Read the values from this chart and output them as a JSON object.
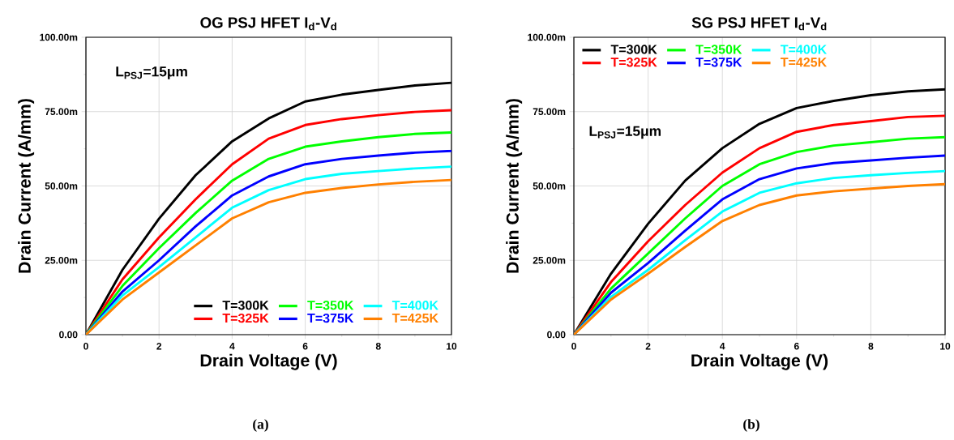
{
  "chart_data": [
    {
      "type": "line",
      "title": "OG PSJ HFET I$_{d}$-V$_{d}$",
      "xlabel": "Drain Voltage (V)",
      "ylabel": "Drain Current (A/mm)",
      "x": [
        0,
        1,
        2,
        3,
        4,
        5,
        6,
        7,
        8,
        9,
        10
      ],
      "xlim": [
        0,
        10
      ],
      "xticks": [
        0,
        2,
        4,
        6,
        8,
        10
      ],
      "ylim": [
        0,
        100
      ],
      "yticks": [
        {
          "value": 0,
          "label": "0.00"
        },
        {
          "value": 25,
          "label": "25.00m"
        },
        {
          "value": 50,
          "label": "50.00m"
        },
        {
          "value": 75,
          "label": "75.00m"
        },
        {
          "value": 100,
          "label": "100.00m"
        }
      ],
      "grid": true,
      "legend": "bottom right",
      "line_style": "solid",
      "annotations": [
        "L$_{PSJ}$=15μm",
        "(a)"
      ],
      "series": [
        {
          "name": "T=300K",
          "color": "#000000",
          "values": [
            0,
            21.8,
            39,
            53.6,
            65,
            72.7,
            78.4,
            80.7,
            82.3,
            83.8,
            84.7
          ]
        },
        {
          "name": "T=325K",
          "color": "#ff0000",
          "values": [
            0,
            18.6,
            32.7,
            45.5,
            57.3,
            65.9,
            70.5,
            72.5,
            73.8,
            74.9,
            75.5
          ]
        },
        {
          "name": "T=350K",
          "color": "#00ff00",
          "values": [
            0,
            16.4,
            29.1,
            40.9,
            51.8,
            59.1,
            63.2,
            65,
            66.4,
            67.5,
            68
          ]
        },
        {
          "name": "T=375K",
          "color": "#0000ff",
          "values": [
            0,
            14.5,
            25,
            36.4,
            46.8,
            53.2,
            57.3,
            59.1,
            60.2,
            61.2,
            61.8
          ]
        },
        {
          "name": "T=400K",
          "color": "#00ffff",
          "values": [
            0,
            13.2,
            22.7,
            32.7,
            42.7,
            48.6,
            52.3,
            54.1,
            55,
            55.9,
            56.5
          ]
        },
        {
          "name": "T=425K",
          "color": "#ff8000",
          "values": [
            0,
            11.8,
            20.9,
            30,
            39.1,
            44.5,
            47.7,
            49.3,
            50.5,
            51.4,
            52
          ]
        }
      ]
    },
    {
      "type": "line",
      "title": "SG PSJ HFET I$_{d}$-V$_{d}$",
      "xlabel": "Drain Voltage (V)",
      "ylabel": "Drain Current (A/mm)",
      "x": [
        0,
        1,
        2,
        3,
        4,
        5,
        6,
        7,
        8,
        9,
        10
      ],
      "xlim": [
        0,
        10
      ],
      "xticks": [
        0,
        2,
        4,
        6,
        8,
        10
      ],
      "ylim": [
        0,
        100
      ],
      "yticks": [
        {
          "value": 0,
          "label": "0.00"
        },
        {
          "value": 25,
          "label": "25.00m"
        },
        {
          "value": 50,
          "label": "50.00m"
        },
        {
          "value": 75,
          "label": "75.00m"
        },
        {
          "value": 100,
          "label": "100.00m"
        }
      ],
      "grid": true,
      "legend": "top left",
      "line_style": "solid",
      "annotations": [
        "L$_{PSJ}$=15μm",
        "(b)"
      ],
      "series": [
        {
          "name": "T=300K",
          "color": "#000000",
          "values": [
            0,
            20.5,
            37.3,
            51.8,
            62.7,
            70.9,
            76.2,
            78.6,
            80.5,
            81.8,
            82.5
          ]
        },
        {
          "name": "T=325K",
          "color": "#ff0000",
          "values": [
            0,
            17.7,
            31.4,
            43.6,
            54.5,
            62.7,
            68.2,
            70.5,
            71.8,
            73.2,
            73.6
          ]
        },
        {
          "name": "T=350K",
          "color": "#00ff00",
          "values": [
            0,
            15.5,
            27.3,
            39.1,
            50,
            57.3,
            61.4,
            63.6,
            64.7,
            65.9,
            66.4
          ]
        },
        {
          "name": "T=375K",
          "color": "#0000ff",
          "values": [
            0,
            14.1,
            24.1,
            35,
            45.5,
            52.3,
            55.9,
            57.7,
            58.6,
            59.5,
            60.2
          ]
        },
        {
          "name": "T=400K",
          "color": "#00ffff",
          "values": [
            0,
            12.7,
            21.8,
            31.8,
            41.4,
            47.7,
            50.9,
            52.7,
            53.6,
            54.4,
            55
          ]
        },
        {
          "name": "T=425K",
          "color": "#ff8000",
          "values": [
            0,
            11.8,
            20.5,
            29.5,
            38.2,
            43.6,
            46.8,
            48.2,
            49.1,
            50,
            50.6
          ]
        }
      ]
    }
  ]
}
